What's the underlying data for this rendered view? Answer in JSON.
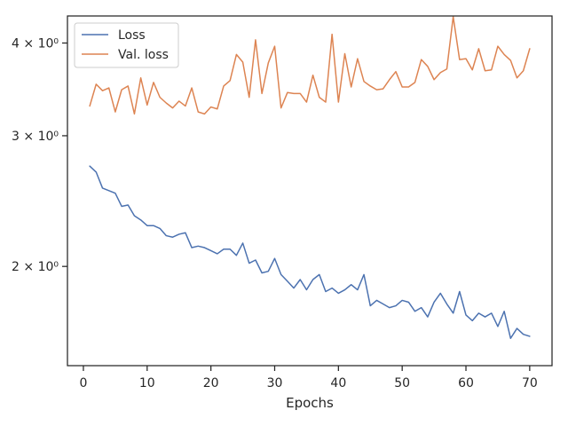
{
  "chart_data": {
    "type": "line",
    "title": "",
    "xlabel": "Epochs",
    "ylabel": "",
    "y_scale": "log",
    "xlim": [
      -2.5,
      73.5
    ],
    "ylim": [
      1.47,
      4.35
    ],
    "grid": false,
    "legend_position": "top-left",
    "x_ticks": [
      0,
      10,
      20,
      30,
      40,
      50,
      60,
      70
    ],
    "x_tick_labels": [
      "0",
      "10",
      "20",
      "30",
      "40",
      "50",
      "60",
      "70"
    ],
    "y_ticks": [
      2,
      3,
      4
    ],
    "y_tick_labels": [
      "2 × 10⁰",
      "3 × 10⁰",
      "4 × 10⁰"
    ],
    "x": [
      1,
      2,
      3,
      4,
      5,
      6,
      7,
      8,
      9,
      10,
      11,
      12,
      13,
      14,
      15,
      16,
      17,
      18,
      19,
      20,
      21,
      22,
      23,
      24,
      25,
      26,
      27,
      28,
      29,
      30,
      31,
      32,
      33,
      34,
      35,
      36,
      37,
      38,
      39,
      40,
      41,
      42,
      43,
      44,
      45,
      46,
      47,
      48,
      49,
      50,
      51,
      52,
      53,
      54,
      55,
      56,
      57,
      58,
      59,
      60,
      61,
      62,
      63,
      64,
      65,
      66,
      67,
      68,
      69,
      70
    ],
    "series": [
      {
        "name": "Loss",
        "color": "#4c72b0",
        "values": [
          2.73,
          2.68,
          2.55,
          2.53,
          2.51,
          2.41,
          2.42,
          2.34,
          2.31,
          2.27,
          2.27,
          2.25,
          2.2,
          2.19,
          2.21,
          2.22,
          2.12,
          2.13,
          2.12,
          2.1,
          2.08,
          2.11,
          2.11,
          2.07,
          2.15,
          2.02,
          2.04,
          1.96,
          1.97,
          2.05,
          1.95,
          1.91,
          1.87,
          1.92,
          1.86,
          1.92,
          1.95,
          1.85,
          1.87,
          1.84,
          1.86,
          1.89,
          1.86,
          1.95,
          1.77,
          1.8,
          1.78,
          1.76,
          1.77,
          1.8,
          1.79,
          1.74,
          1.76,
          1.71,
          1.79,
          1.84,
          1.78,
          1.73,
          1.85,
          1.72,
          1.69,
          1.73,
          1.71,
          1.73,
          1.66,
          1.74,
          1.6,
          1.65,
          1.62,
          1.61
        ]
      },
      {
        "name": "Val. loss",
        "color": "#dd8452",
        "values": [
          3.29,
          3.52,
          3.45,
          3.48,
          3.23,
          3.46,
          3.5,
          3.21,
          3.59,
          3.3,
          3.54,
          3.38,
          3.32,
          3.27,
          3.34,
          3.29,
          3.48,
          3.23,
          3.21,
          3.28,
          3.26,
          3.5,
          3.56,
          3.86,
          3.77,
          3.38,
          4.04,
          3.42,
          3.76,
          3.96,
          3.27,
          3.43,
          3.42,
          3.42,
          3.33,
          3.62,
          3.38,
          3.33,
          4.11,
          3.33,
          3.87,
          3.49,
          3.81,
          3.55,
          3.5,
          3.46,
          3.47,
          3.57,
          3.66,
          3.49,
          3.49,
          3.54,
          3.8,
          3.72,
          3.57,
          3.65,
          3.69,
          4.34,
          3.8,
          3.81,
          3.68,
          3.93,
          3.67,
          3.68,
          3.96,
          3.86,
          3.79,
          3.59,
          3.67,
          3.93
        ]
      }
    ]
  }
}
